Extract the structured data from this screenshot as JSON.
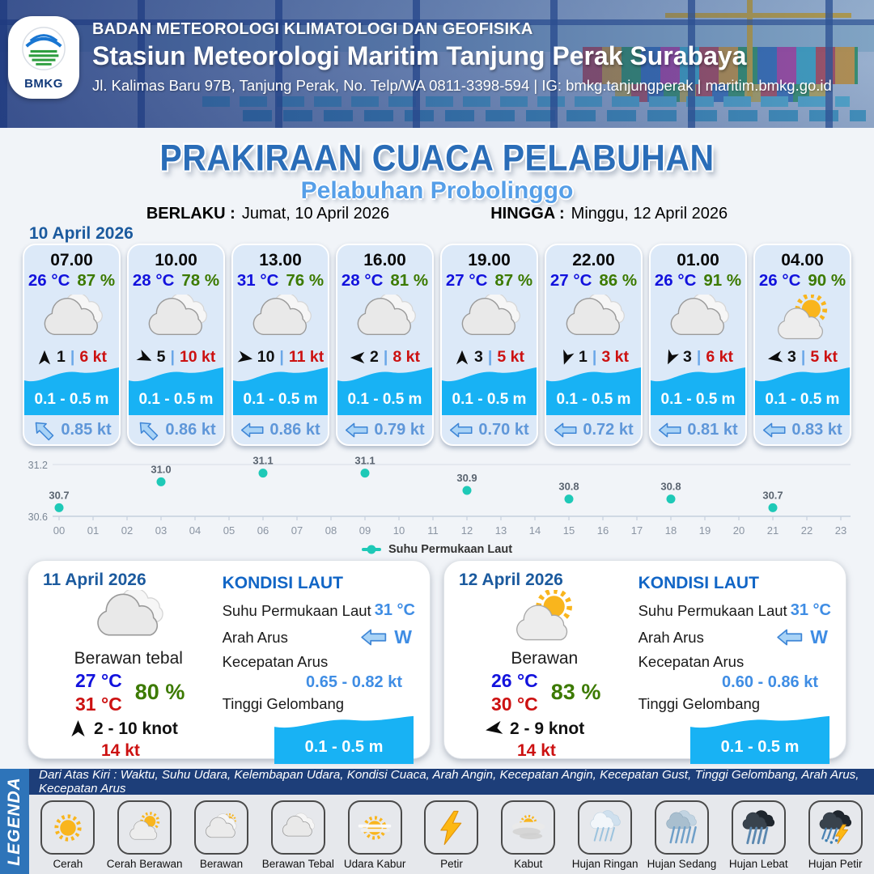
{
  "header": {
    "org": "BADAN METEOROLOGI KLIMATOLOGI DAN GEOFISIKA",
    "station": "Stasiun Meteorologi Maritim Tanjung Perak Surabaya",
    "address": "Jl. Kalimas Baru 97B, Tanjung Perak, No. Telp/WA 0811-3398-594 | IG: bmkg.tanjungperak | maritim.bmkg.go.id",
    "logo_text": "BMKG"
  },
  "title": {
    "main": "PRAKIRAAN CUACA PELABUHAN",
    "port": "Pelabuhan Probolinggo",
    "valid_from_label": "BERLAKU :",
    "valid_from": "Jumat, 10 April 2026",
    "valid_to_label": "HINGGA :",
    "valid_to": "Minggu, 12 April 2026"
  },
  "forecast": {
    "date": "10 April 2026",
    "cards": [
      {
        "time": "07.00",
        "temp": "26 °C",
        "humidity": "87 %",
        "icon": "berawan-tebal",
        "wind_dir_deg": 0,
        "wind": "1",
        "gust": "6 kt",
        "wave": "0.1 - 0.5 m",
        "current_dir": "NW",
        "current_speed": "0.85 kt"
      },
      {
        "time": "10.00",
        "temp": "28 °C",
        "humidity": "78 %",
        "icon": "berawan-tebal",
        "wind_dir_deg": 115,
        "wind": "5",
        "gust": "10 kt",
        "wave": "0.1 - 0.5 m",
        "current_dir": "NW",
        "current_speed": "0.86 kt"
      },
      {
        "time": "13.00",
        "temp": "31 °C",
        "humidity": "76 %",
        "icon": "berawan-tebal",
        "wind_dir_deg": 100,
        "wind": "10",
        "gust": "11 kt",
        "wave": "0.1 - 0.5 m",
        "current_dir": "W",
        "current_speed": "0.86 kt"
      },
      {
        "time": "16.00",
        "temp": "28 °C",
        "humidity": "81 %",
        "icon": "berawan-tebal",
        "wind_dir_deg": 270,
        "wind": "2",
        "gust": "8 kt",
        "wave": "0.1 - 0.5 m",
        "current_dir": "W",
        "current_speed": "0.79 kt"
      },
      {
        "time": "19.00",
        "temp": "27 °C",
        "humidity": "87 %",
        "icon": "berawan-tebal",
        "wind_dir_deg": 0,
        "wind": "3",
        "gust": "5 kt",
        "wave": "0.1 - 0.5 m",
        "current_dir": "W",
        "current_speed": "0.70 kt"
      },
      {
        "time": "22.00",
        "temp": "27 °C",
        "humidity": "86 %",
        "icon": "berawan-tebal",
        "wind_dir_deg": 200,
        "wind": "1",
        "gust": "3 kt",
        "wave": "0.1 - 0.5 m",
        "current_dir": "W",
        "current_speed": "0.72 kt"
      },
      {
        "time": "01.00",
        "temp": "26 °C",
        "humidity": "91 %",
        "icon": "berawan-tebal",
        "wind_dir_deg": 205,
        "wind": "3",
        "gust": "6 kt",
        "wave": "0.1 - 0.5 m",
        "current_dir": "W",
        "current_speed": "0.81 kt"
      },
      {
        "time": "04.00",
        "temp": "26 °C",
        "humidity": "90 %",
        "icon": "cerah-berawan",
        "wind_dir_deg": 260,
        "wind": "3",
        "gust": "5 kt",
        "wave": "0.1 - 0.5 m",
        "current_dir": "W",
        "current_speed": "0.83 kt"
      }
    ]
  },
  "chart_data": {
    "type": "scatter",
    "series": [
      {
        "name": "Suhu Permukaan Laut",
        "x": [
          0,
          3,
          6,
          9,
          12,
          15,
          18,
          21
        ],
        "values": [
          30.7,
          31.0,
          31.1,
          31.1,
          30.9,
          30.8,
          30.8,
          30.7
        ],
        "labels": [
          "30.7",
          "31.0",
          "31.1",
          "31.1",
          "30.9",
          "30.8",
          "30.8",
          "30.7"
        ]
      }
    ],
    "x_ticks": [
      "00",
      "01",
      "02",
      "03",
      "04",
      "05",
      "06",
      "07",
      "08",
      "09",
      "10",
      "11",
      "12",
      "13",
      "14",
      "15",
      "16",
      "17",
      "18",
      "19",
      "20",
      "21",
      "22",
      "23"
    ],
    "ylim": [
      30.6,
      31.2
    ],
    "y_tick_labels": [
      "30.6",
      "31.2"
    ],
    "grid": "top-gridline-and-baseline",
    "legend_position": "bottom",
    "point_color": "#1ec9b7"
  },
  "days": [
    {
      "date": "11 April 2026",
      "condition": "Berawan tebal",
      "icon": "berawan-tebal",
      "temp_min": "27 °C",
      "temp_max": "31 °C",
      "humidity": "80 %",
      "wind_dir_deg": 0,
      "wind_range": "2  - 10 knot",
      "gust": "14 kt",
      "sea": {
        "heading": "KONDISI LAUT",
        "sst_label": "Suhu Permukaan Laut",
        "sst": "31 °C",
        "dir_label": "Arah Arus",
        "dir": "W",
        "speed_label": "Kecepatan Arus",
        "speed": "0.65  - 0.82 kt",
        "wave_label": "Tinggi Gelombang",
        "wave": "0.1 - 0.5 m"
      }
    },
    {
      "date": "12 April 2026",
      "condition": "Berawan",
      "icon": "cerah-berawan",
      "temp_min": "26 °C",
      "temp_max": "30 °C",
      "humidity": "83 %",
      "wind_dir_deg": 260,
      "wind_range": "2  - 9 knot",
      "gust": "14 kt",
      "sea": {
        "heading": "KONDISI LAUT",
        "sst_label": "Suhu Permukaan Laut",
        "sst": "31 °C",
        "dir_label": "Arah Arus",
        "dir": "W",
        "speed_label": "Kecepatan Arus",
        "speed": "0.60  - 0.86 kt",
        "wave_label": "Tinggi Gelombang",
        "wave": "0.1 - 0.5 m"
      }
    }
  ],
  "legend": {
    "bar_label": "LEGENDA",
    "caption": "Dari Atas Kiri : Waktu, Suhu Udara, Kelembapan Udara, Kondisi Cuaca, Arah Angin, Kecepatan Angin, Kecepatan Gust, Tinggi Gelombang, Arah Arus, Kecepatan Arus",
    "items": [
      {
        "label": "Cerah",
        "icon": "cerah"
      },
      {
        "label": "Cerah Berawan",
        "icon": "cerah-berawan"
      },
      {
        "label": "Berawan",
        "icon": "berawan"
      },
      {
        "label": "Berawan Tebal",
        "icon": "berawan-tebal"
      },
      {
        "label": "Udara Kabur",
        "icon": "udara-kabur"
      },
      {
        "label": "Petir",
        "icon": "petir"
      },
      {
        "label": "Kabut",
        "icon": "kabut"
      },
      {
        "label": "Hujan Ringan",
        "icon": "hujan-ringan"
      },
      {
        "label": "Hujan Sedang",
        "icon": "hujan-sedang"
      },
      {
        "label": "Hujan Lebat",
        "icon": "hujan-lebat"
      },
      {
        "label": "Hujan Petir",
        "icon": "hujan-petir"
      }
    ]
  },
  "colors": {
    "title_blue": "#2a6db8",
    "subtitle_blue": "#569fe8",
    "date_blue": "#1b5a9e",
    "temp_blue": "#1212dd",
    "humidity_green": "#3c7a00",
    "gust_red": "#cc1111",
    "wave_cyan": "#18b2f4",
    "current_blue": "#5f97d9",
    "chart_teal": "#1ec9b7",
    "sea_value_blue": "#3f8de4",
    "legend_bar_blue": "#2e74b9",
    "caption_navy": "#1d3e79"
  }
}
